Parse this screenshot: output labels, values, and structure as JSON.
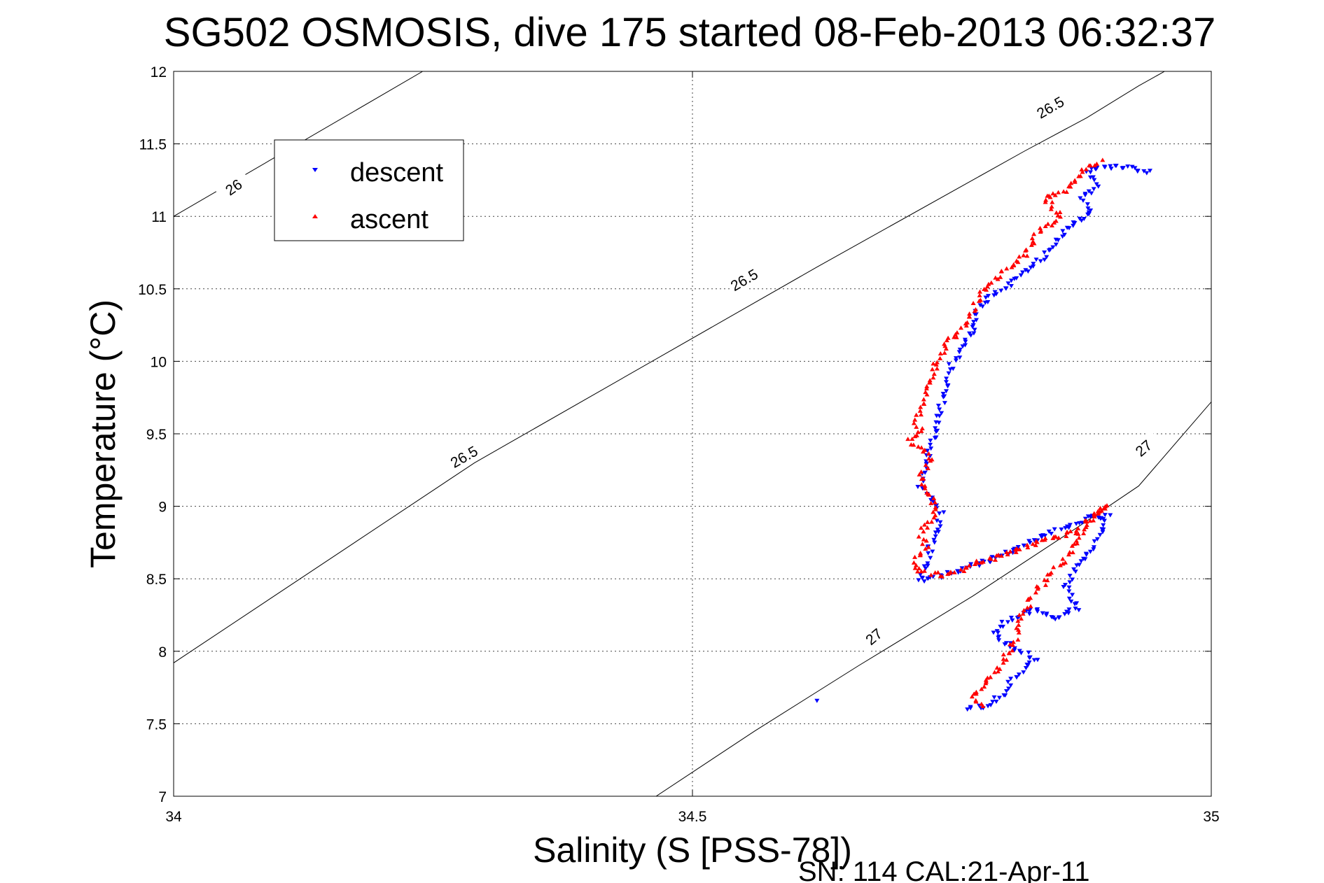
{
  "chart_data": {
    "type": "scatter",
    "title": "SG502 OSMOSIS, dive 175 started 08-Feb-2013 06:32:37",
    "xlabel": "Salinity (S [PSS-78])",
    "ylabel": "Temperature (°C)",
    "xlim": [
      34,
      35
    ],
    "ylim": [
      7,
      12
    ],
    "xticks": [
      "34",
      "34.5",
      "35"
    ],
    "yticks": [
      "7",
      "7.5",
      "8",
      "8.5",
      "9",
      "9.5",
      "10",
      "10.5",
      "11",
      "11.5",
      "12"
    ],
    "grid": true,
    "legend_position": "top-left",
    "footnote": "SN: 114  CAL:21-Apr-11",
    "series_colors": {
      "descent": "#0000ff",
      "ascent": "#ff0000"
    },
    "series": [
      {
        "name": "descent",
        "marker": "triangle-down",
        "path": [
          [
            34.94,
            11.31
          ],
          [
            34.91,
            11.35
          ],
          [
            34.88,
            11.32
          ],
          [
            34.89,
            11.2
          ],
          [
            34.875,
            11.12
          ],
          [
            34.885,
            11.03
          ],
          [
            34.86,
            10.92
          ],
          [
            34.855,
            10.85
          ],
          [
            34.84,
            10.73
          ],
          [
            34.82,
            10.62
          ],
          [
            34.8,
            10.5
          ],
          [
            34.785,
            10.43
          ],
          [
            34.775,
            10.36
          ],
          [
            34.77,
            10.2
          ],
          [
            34.76,
            10.1
          ],
          [
            34.75,
            9.98
          ],
          [
            34.745,
            9.85
          ],
          [
            34.74,
            9.7
          ],
          [
            34.735,
            9.55
          ],
          [
            34.73,
            9.4
          ],
          [
            34.725,
            9.28
          ],
          [
            34.72,
            9.15
          ],
          [
            34.73,
            9.05
          ],
          [
            34.74,
            8.96
          ],
          [
            34.735,
            8.85
          ],
          [
            34.73,
            8.73
          ],
          [
            34.725,
            8.6
          ],
          [
            34.72,
            8.48
          ],
          [
            34.76,
            8.56
          ],
          [
            34.79,
            8.64
          ],
          [
            34.81,
            8.7
          ],
          [
            34.83,
            8.78
          ],
          [
            34.86,
            8.85
          ],
          [
            34.88,
            8.92
          ],
          [
            34.9,
            8.93
          ],
          [
            34.89,
            8.75
          ],
          [
            34.87,
            8.58
          ],
          [
            34.86,
            8.45
          ],
          [
            34.87,
            8.3
          ],
          [
            34.85,
            8.22
          ],
          [
            34.83,
            8.3
          ],
          [
            34.8,
            8.2
          ],
          [
            34.79,
            8.12
          ],
          [
            34.81,
            8.02
          ],
          [
            34.83,
            7.95
          ],
          [
            34.81,
            7.82
          ],
          [
            34.8,
            7.7
          ],
          [
            34.78,
            7.62
          ],
          [
            34.765,
            7.6
          ]
        ],
        "isolated_points": [
          [
            34.62,
            7.66
          ]
        ]
      },
      {
        "name": "ascent",
        "marker": "triangle-up",
        "path": [
          [
            34.895,
            11.38
          ],
          [
            34.88,
            11.33
          ],
          [
            34.87,
            11.25
          ],
          [
            34.86,
            11.18
          ],
          [
            34.85,
            11.15
          ],
          [
            34.84,
            11.12
          ],
          [
            34.855,
            11.0
          ],
          [
            34.84,
            10.92
          ],
          [
            34.83,
            10.85
          ],
          [
            34.82,
            10.72
          ],
          [
            34.8,
            10.62
          ],
          [
            34.785,
            10.52
          ],
          [
            34.775,
            10.43
          ],
          [
            34.77,
            10.35
          ],
          [
            34.76,
            10.22
          ],
          [
            34.745,
            10.12
          ],
          [
            34.74,
            10.02
          ],
          [
            34.73,
            9.92
          ],
          [
            34.725,
            9.8
          ],
          [
            34.72,
            9.68
          ],
          [
            34.715,
            9.6
          ],
          [
            34.72,
            9.52
          ],
          [
            34.71,
            9.45
          ],
          [
            34.725,
            9.38
          ],
          [
            34.73,
            9.32
          ],
          [
            34.72,
            9.2
          ],
          [
            34.725,
            9.1
          ],
          [
            34.735,
            9.0
          ],
          [
            34.73,
            8.9
          ],
          [
            34.72,
            8.82
          ],
          [
            34.725,
            8.72
          ],
          [
            34.715,
            8.62
          ],
          [
            34.72,
            8.55
          ],
          [
            34.745,
            8.52
          ],
          [
            34.77,
            8.6
          ],
          [
            34.79,
            8.64
          ],
          [
            34.82,
            8.72
          ],
          [
            34.845,
            8.78
          ],
          [
            34.87,
            8.82
          ],
          [
            34.895,
            8.98
          ],
          [
            34.9,
            9.0
          ],
          [
            34.88,
            8.9
          ],
          [
            34.87,
            8.75
          ],
          [
            34.855,
            8.6
          ],
          [
            34.84,
            8.48
          ],
          [
            34.83,
            8.4
          ],
          [
            34.82,
            8.28
          ],
          [
            34.815,
            8.18
          ],
          [
            34.81,
            8.05
          ],
          [
            34.8,
            7.95
          ],
          [
            34.79,
            7.85
          ],
          [
            34.78,
            7.75
          ],
          [
            34.77,
            7.68
          ],
          [
            34.78,
            7.62
          ]
        ]
      }
    ],
    "density_contours": [
      {
        "label": "26",
        "label_at": [
          34.055,
          11.2
        ],
        "points": [
          [
            34.0,
            11.0
          ],
          [
            34.24,
            12.0
          ]
        ]
      },
      {
        "label": "26.5",
        "label_at": [
          34.5,
          10.3
        ],
        "points": [
          [
            34.0,
            7.92
          ],
          [
            34.29,
            9.3
          ],
          [
            34.62,
            10.65
          ],
          [
            34.82,
            11.45
          ],
          [
            34.88,
            11.68
          ],
          [
            34.93,
            11.9
          ],
          [
            34.955,
            12.0
          ]
        ]
      },
      {
        "label": "27",
        "label_at": [
          34.68,
          8.05
        ],
        "points": [
          [
            34.465,
            7.0
          ],
          [
            34.56,
            7.45
          ],
          [
            34.66,
            7.9
          ],
          [
            34.77,
            8.38
          ],
          [
            34.87,
            8.85
          ],
          [
            34.93,
            9.14
          ],
          [
            35.0,
            9.72
          ]
        ]
      }
    ],
    "contour_labels": [
      {
        "text": "26",
        "at": [
          34.058,
          11.2
        ],
        "angle": -35
      },
      {
        "text": "26.5",
        "at": [
          34.28,
          9.34
        ],
        "angle": -30
      },
      {
        "text": "26.5",
        "at": [
          34.55,
          10.56
        ],
        "angle": -30
      },
      {
        "text": "26.5",
        "at": [
          34.845,
          11.75
        ],
        "angle": -30
      },
      {
        "text": "27",
        "at": [
          34.675,
          8.1
        ],
        "angle": -40
      },
      {
        "text": "27",
        "at": [
          34.935,
          9.4
        ],
        "angle": -40
      }
    ],
    "legend_entries": [
      {
        "text": "descent",
        "series": "descent"
      },
      {
        "text": "ascent",
        "series": "ascent"
      }
    ]
  }
}
